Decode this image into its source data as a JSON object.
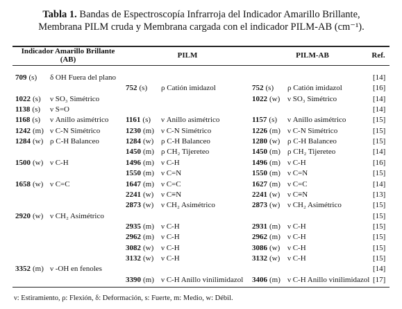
{
  "title": {
    "label": "Tabla 1.",
    "text": "Bandas de Espectroscopía Infrarroja del Indicador Amarillo Brillante, Membrana PILM cruda y Membrana cargada con el indicador PILM-AB (cm⁻¹)."
  },
  "table": {
    "headers": [
      "Indicador Amarillo Brillante (AB)",
      "PILM",
      "PILM-AB",
      "Ref."
    ],
    "rows": [
      {
        "ab": {
          "band": "709",
          "int": "(s)",
          "mode": "δ OH Fuera del plano"
        },
        "ref": "[14]"
      },
      {
        "pilm": {
          "band": "752",
          "int": "(s)",
          "mode": "ρ Catión imidazol"
        },
        "pilm_ab": {
          "band": "752",
          "int": "(s)",
          "mode": "ρ Catión imidazol"
        },
        "ref": "[16]"
      },
      {
        "ab": {
          "band": "1022",
          "int": "(s)",
          "mode": "ν SO₃ Simétrico"
        },
        "pilm_ab": {
          "band": "1022",
          "int": "(w)",
          "mode": "ν SO₃ Simétrico"
        },
        "ref": "[14]"
      },
      {
        "ab": {
          "band": "1138",
          "int": "(s)",
          "mode": "ν S=O"
        },
        "ref": "[14]"
      },
      {
        "ab": {
          "band": "1168",
          "int": "(s)",
          "mode": "ν Anillo asimétrico"
        },
        "pilm": {
          "band": "1161",
          "int": "(s)",
          "mode": "ν Anillo asimétrico"
        },
        "pilm_ab": {
          "band": "1157",
          "int": "(s)",
          "mode": "ν Anillo asimétrico"
        },
        "ref": "[15]"
      },
      {
        "ab": {
          "band": "1242",
          "int": "(m)",
          "mode": "ν C-N Simétrico"
        },
        "pilm": {
          "band": "1230",
          "int": "(m)",
          "mode": "ν C-N Simétrico"
        },
        "pilm_ab": {
          "band": "1226",
          "int": "(m)",
          "mode": "ν C-N Simétrico"
        },
        "ref": "[15]"
      },
      {
        "ab": {
          "band": "1284",
          "int": "(w)",
          "mode": "ρ C-H Balanceo"
        },
        "pilm": {
          "band": "1284",
          "int": "(w)",
          "mode": "ρ C-H Balanceo"
        },
        "pilm_ab": {
          "band": "1280",
          "int": "(w)",
          "mode": "ρ C-H Balanceo"
        },
        "ref": "[15]"
      },
      {
        "pilm": {
          "band": "1450",
          "int": "(m)",
          "mode": "ρ CH₂ Tijereteo"
        },
        "pilm_ab": {
          "band": "1450",
          "int": "(m)",
          "mode": "ρ CH₂ Tijereteo"
        },
        "ref": "[14]"
      },
      {
        "ab": {
          "band": "1500",
          "int": "(w)",
          "mode": "ν C-H"
        },
        "pilm": {
          "band": "1496",
          "int": "(m)",
          "mode": "ν C-H"
        },
        "pilm_ab": {
          "band": "1496",
          "int": "(m)",
          "mode": "ν C-H"
        },
        "ref": "[16]"
      },
      {
        "pilm": {
          "band": "1550",
          "int": "(m)",
          "mode": "ν C=N"
        },
        "pilm_ab": {
          "band": "1550",
          "int": "(m)",
          "mode": "ν C=N"
        },
        "ref": "[15]"
      },
      {
        "ab": {
          "band": "1658",
          "int": "(w)",
          "mode": "ν C=C"
        },
        "pilm": {
          "band": "1647",
          "int": "(m)",
          "mode": "ν C=C"
        },
        "pilm_ab": {
          "band": "1627",
          "int": "(m)",
          "mode": "ν C=C"
        },
        "ref": "[14]"
      },
      {
        "pilm": {
          "band": "2241",
          "int": "(w)",
          "mode": "ν C≡N"
        },
        "pilm_ab": {
          "band": "2241",
          "int": "(w)",
          "mode": "ν C≡N"
        },
        "ref": "[13]"
      },
      {
        "pilm": {
          "band": "2873",
          "int": "(w)",
          "mode": "ν CH₂ Asimétrico"
        },
        "pilm_ab": {
          "band": "2873",
          "int": "(w)",
          "mode": "ν CH₂ Asimétrico"
        },
        "ref": "[15]"
      },
      {
        "ab": {
          "band": "2920",
          "int": "(w)",
          "mode": "ν CH₂ Asimétrico"
        },
        "ref": "[15]"
      },
      {
        "pilm": {
          "band": "2935",
          "int": "(m)",
          "mode": "ν C-H"
        },
        "pilm_ab": {
          "band": "2931",
          "int": "(m)",
          "mode": "ν C-H"
        },
        "ref": "[15]"
      },
      {
        "pilm": {
          "band": "2962",
          "int": "(m)",
          "mode": "ν C-H"
        },
        "pilm_ab": {
          "band": "2962",
          "int": "(m)",
          "mode": "ν C-H"
        },
        "ref": "[15]"
      },
      {
        "pilm": {
          "band": "3082",
          "int": "(w)",
          "mode": "ν C-H"
        },
        "pilm_ab": {
          "band": "3086",
          "int": "(w)",
          "mode": "ν C-H"
        },
        "ref": "[15]"
      },
      {
        "pilm": {
          "band": "3132",
          "int": "(w)",
          "mode": "ν C-H"
        },
        "pilm_ab": {
          "band": "3132",
          "int": "(w)",
          "mode": "ν C-H"
        },
        "ref": "[15]"
      },
      {
        "ab": {
          "band": "3352",
          "int": "(m)",
          "mode": "ν -OH en fenoles"
        },
        "ref": "[14]"
      },
      {
        "pilm": {
          "band": "3390",
          "int": "(m)",
          "mode": "ν C-H Anillo vinilimidazol"
        },
        "pilm_ab": {
          "band": "3406",
          "int": "(m)",
          "mode": "ν C-H Anillo vinilimidazol"
        },
        "ref": "[17]"
      }
    ]
  },
  "footnote": "ν: Estiramiento, ρ: Flexión, δ: Deformación, s: Fuerte, m: Medio, w: Débil."
}
